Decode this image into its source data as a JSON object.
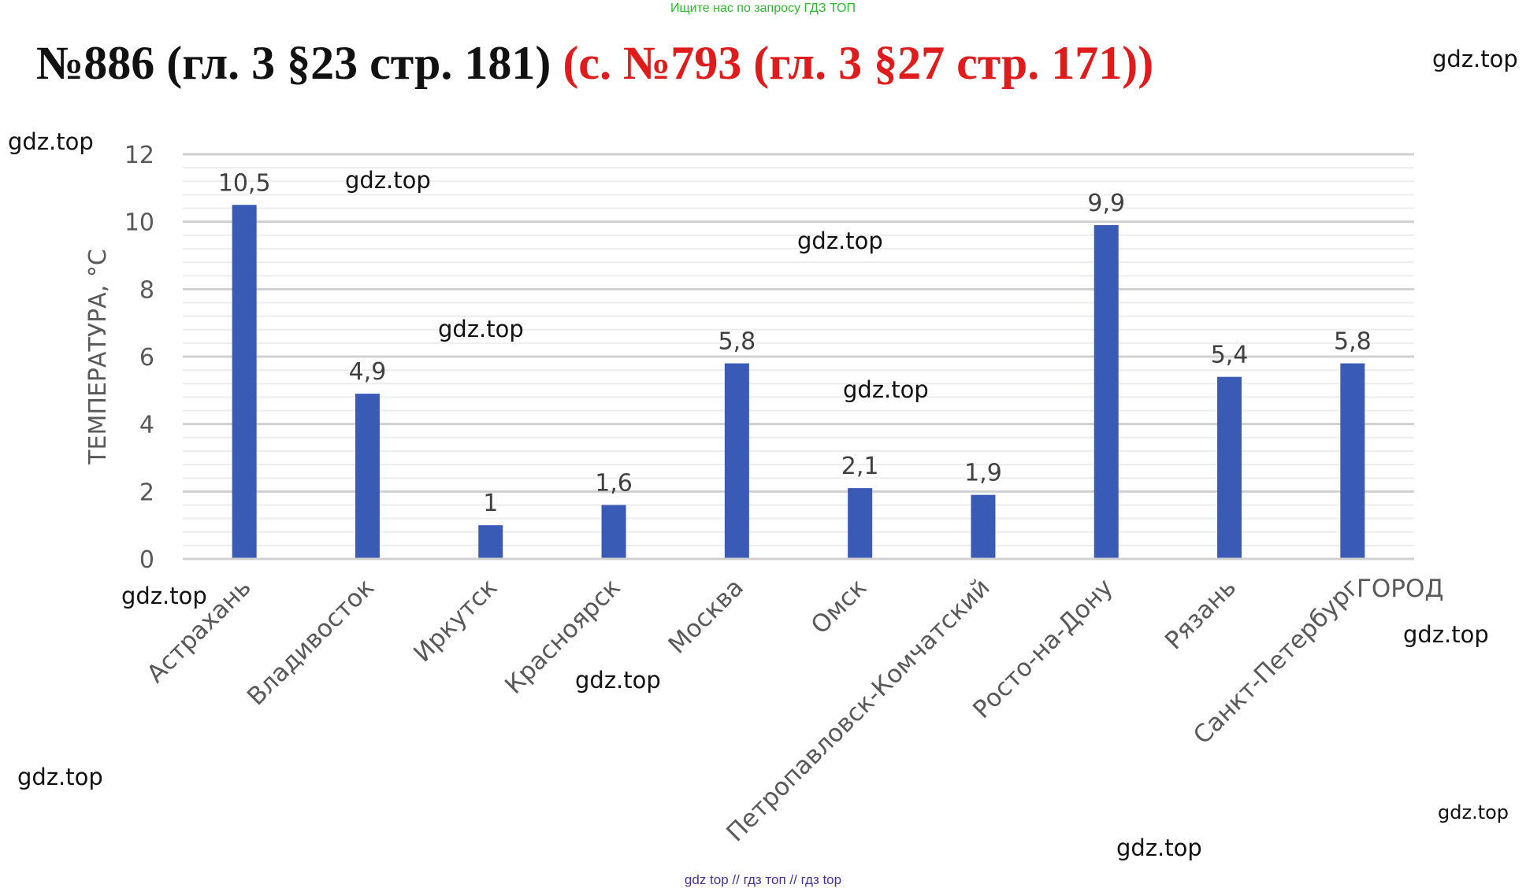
{
  "banner": "Ищите нас по запросу ГДЗ ТОП",
  "heading": {
    "main": "№886 (гл. 3 §23 стр. 181)",
    "alt": "(с. №793 (гл. 3 §27 стр. 171))"
  },
  "watermarks": [
    "gdz.top",
    "gdz.top",
    "gdz.top",
    "gdz.top",
    "gdz.top",
    "gdz.top",
    "gdz.top",
    "gdz.top",
    "gdz.top",
    "gdz.top",
    "gdz.top",
    "gdz.top"
  ],
  "footer": "gdz top  //  гдз топ  //  гдз top",
  "chart_data": {
    "type": "bar",
    "title": "",
    "categories": [
      "Астрахань",
      "Владивосток",
      "Иркутск",
      "Красноярск",
      "Москва",
      "Омск",
      "Петропавловск-Комчатский",
      "Росто-на-Дону",
      "Рязань",
      "Санкт-Петербург"
    ],
    "values": [
      10.5,
      4.9,
      1,
      1.6,
      5.8,
      2.1,
      1.9,
      9.9,
      5.4,
      5.8
    ],
    "value_labels": [
      "10,5",
      "4,9",
      "1",
      "1,6",
      "5,8",
      "2,1",
      "1,9",
      "9,9",
      "5,4",
      "5,8"
    ],
    "xlabel": "ГОРОД",
    "ylabel": "ТЕМПЕРАТУРА, °С",
    "ylim": [
      0,
      12
    ],
    "yticks": [
      "0",
      "2",
      "4",
      "6",
      "8",
      "10",
      "12"
    ],
    "grid": true,
    "bar_color": "#3a5bb5"
  }
}
